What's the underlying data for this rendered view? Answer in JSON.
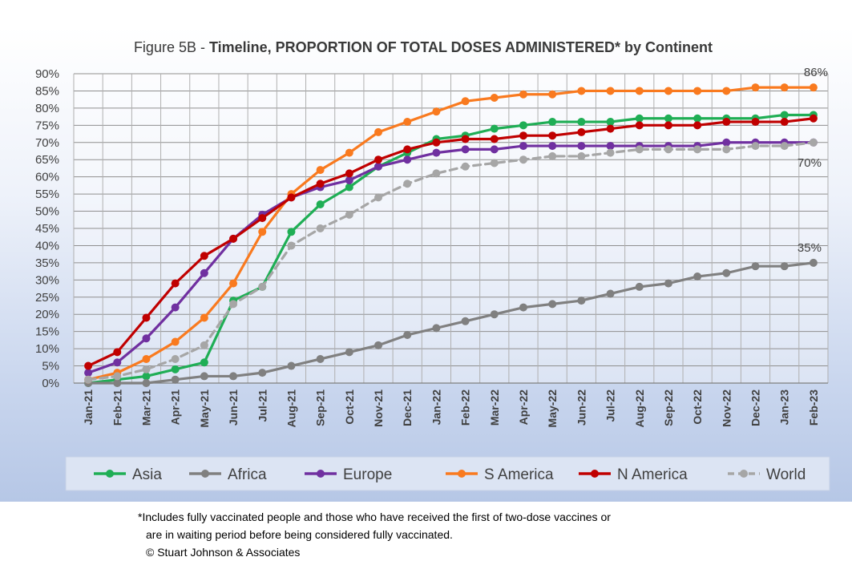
{
  "footnote": {
    "line1": "*Includes fully vaccinated people and those who have received the first of two-dose vaccines or",
    "line2": "are in waiting period before being considered fully vaccinated.",
    "copyright": "© Stuart Johnson & Associates"
  },
  "chart_data": {
    "type": "line",
    "title_prefix": "Figure 5B - ",
    "title_bold": "Timeline, PROPORTION OF TOTAL DOSES ADMINISTERED* by Continent",
    "xlabel": "",
    "ylabel": "",
    "ylim": [
      0,
      90
    ],
    "y_ticks": [
      "0%",
      "5%",
      "10%",
      "15%",
      "20%",
      "25%",
      "30%",
      "35%",
      "40%",
      "45%",
      "50%",
      "55%",
      "60%",
      "65%",
      "70%",
      "75%",
      "80%",
      "85%",
      "90%"
    ],
    "grid": true,
    "legend_position": "bottom",
    "categories": [
      "Jan-21",
      "Feb-21",
      "Mar-21",
      "Apr-21",
      "May-21",
      "Jun-21",
      "Jul-21",
      "Aug-21",
      "Sep-21",
      "Oct-21",
      "Nov-21",
      "Dec-21",
      "Jan-22",
      "Feb-22",
      "Mar-22",
      "Apr-22",
      "May-22",
      "Jun-22",
      "Jul-22",
      "Aug-22",
      "Sep-22",
      "Oct-22",
      "Nov-22",
      "Dec-22",
      "Jan-23",
      "Feb-23"
    ],
    "series": [
      {
        "name": "Asia",
        "color": "#1fae55",
        "dashed": false,
        "values": [
          0,
          1,
          2,
          4,
          6,
          24,
          28,
          44,
          52,
          57,
          63,
          67,
          71,
          72,
          74,
          75,
          76,
          76,
          76,
          77,
          77,
          77,
          77,
          77,
          78,
          78
        ]
      },
      {
        "name": "Africa",
        "color": "#808080",
        "dashed": false,
        "values": [
          0,
          0,
          0,
          1,
          2,
          2,
          3,
          5,
          7,
          9,
          11,
          14,
          16,
          18,
          20,
          22,
          23,
          24,
          26,
          28,
          29,
          31,
          32,
          34,
          34,
          35
        ]
      },
      {
        "name": "Europe",
        "color": "#7030a0",
        "dashed": false,
        "values": [
          3,
          6,
          13,
          22,
          32,
          42,
          49,
          54,
          57,
          59,
          63,
          65,
          67,
          68,
          68,
          69,
          69,
          69,
          69,
          69,
          69,
          69,
          70,
          70,
          70,
          70
        ]
      },
      {
        "name": "S America",
        "color": "#f97a1f",
        "dashed": false,
        "values": [
          1,
          3,
          7,
          12,
          19,
          29,
          44,
          55,
          62,
          67,
          73,
          76,
          79,
          82,
          83,
          84,
          84,
          85,
          85,
          85,
          85,
          85,
          85,
          86,
          86,
          86
        ]
      },
      {
        "name": "N America",
        "color": "#c00000",
        "dashed": false,
        "values": [
          5,
          9,
          19,
          29,
          37,
          42,
          48,
          54,
          58,
          61,
          65,
          68,
          70,
          71,
          71,
          72,
          72,
          73,
          74,
          75,
          75,
          75,
          76,
          76,
          76,
          77
        ]
      },
      {
        "name": "World",
        "color": "#a6a6a6",
        "dashed": true,
        "values": [
          1,
          2,
          4,
          7,
          11,
          23,
          28,
          40,
          45,
          49,
          54,
          58,
          61,
          63,
          64,
          65,
          66,
          66,
          67,
          68,
          68,
          68,
          68,
          69,
          69,
          70
        ]
      }
    ],
    "annotations": [
      {
        "text": "86%",
        "series": "S America"
      },
      {
        "text": "70%",
        "series": "World"
      },
      {
        "text": "35%",
        "series": "Africa"
      }
    ]
  }
}
